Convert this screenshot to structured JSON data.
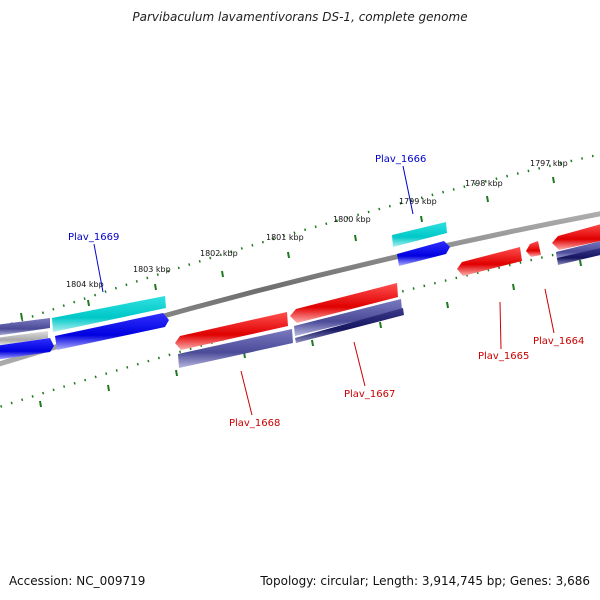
{
  "title": "Parvibaculum lavamentivorans DS-1, complete genome",
  "footer": {
    "accession": "Accession: NC_009719",
    "summary": "Topology: circular; Length: 3,914,745 bp; Genes: 3,686"
  },
  "colors": {
    "backbone": "#808080",
    "tick": "#1f7a1f",
    "forward_cds": "#ff0000",
    "reverse_cds": "#0000ff",
    "cyan_feature": "#00d0d0",
    "slate_feature": "#5a5aa8",
    "navy_feature": "#202070",
    "label_red": "#cc0000",
    "label_blue": "#0000cc"
  },
  "scale": {
    "tick_labels": [
      "1797 kbp",
      "1798 kbp",
      "1799 kbp",
      "1800 kbp",
      "1801 kbp",
      "1802 kbp",
      "1803 kbp",
      "1804 kbp"
    ]
  },
  "genes": [
    {
      "label": "Plav_1666",
      "color": "label_blue"
    },
    {
      "label": "Plav_1669",
      "color": "label_blue"
    },
    {
      "label": "Plav_1664",
      "color": "label_red"
    },
    {
      "label": "Plav_1665",
      "color": "label_red"
    },
    {
      "label": "Plav_1667",
      "color": "label_red"
    },
    {
      "label": "Plav_1668",
      "color": "label_red"
    }
  ]
}
